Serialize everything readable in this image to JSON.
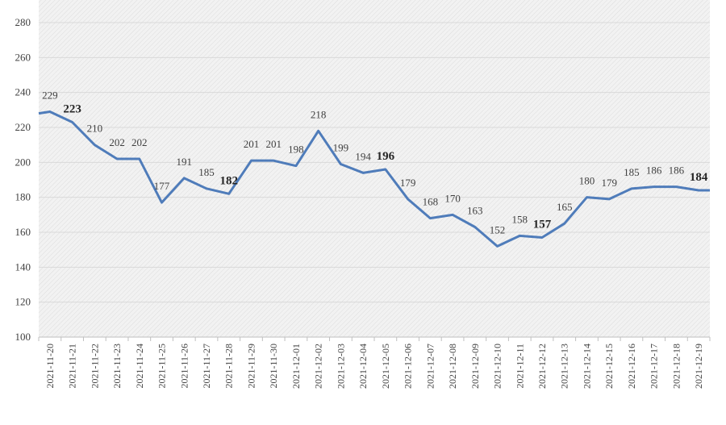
{
  "chart_data": {
    "type": "line",
    "title": "",
    "xlabel": "",
    "ylabel": "",
    "ylim": [
      100,
      280
    ],
    "yticks": [
      100,
      120,
      140,
      160,
      180,
      200,
      220,
      240,
      260,
      280
    ],
    "grid": true,
    "legend": "none",
    "line_color": "#4f7cba",
    "x": [
      "2021-11-20",
      "2021-11-21",
      "2021-11-22",
      "2021-11-23",
      "2021-11-24",
      "2021-11-25",
      "2021-11-26",
      "2021-11-27",
      "2021-11-28",
      "2021-11-29",
      "2021-11-30",
      "2021-12-01",
      "2021-12-02",
      "2021-12-03",
      "2021-12-04",
      "2021-12-05",
      "2021-12-06",
      "2021-12-07",
      "2021-12-08",
      "2021-12-09",
      "2021-12-10",
      "2021-12-11",
      "2021-12-12",
      "2021-12-13",
      "2021-12-14",
      "2021-12-15",
      "2021-12-16",
      "2021-12-17",
      "2021-12-18",
      "2021-12-19"
    ],
    "series": [
      {
        "values": [
          229,
          223,
          210,
          202,
          202,
          177,
          191,
          185,
          182,
          201,
          201,
          198,
          218,
          199,
          194,
          196,
          179,
          168,
          170,
          163,
          152,
          158,
          157,
          165,
          180,
          179,
          185,
          186,
          186,
          184
        ]
      }
    ],
    "bold_labels": [
      "2021-11-21",
      "2021-11-28",
      "2021-12-05",
      "2021-12-12",
      "2021-12-19"
    ]
  }
}
